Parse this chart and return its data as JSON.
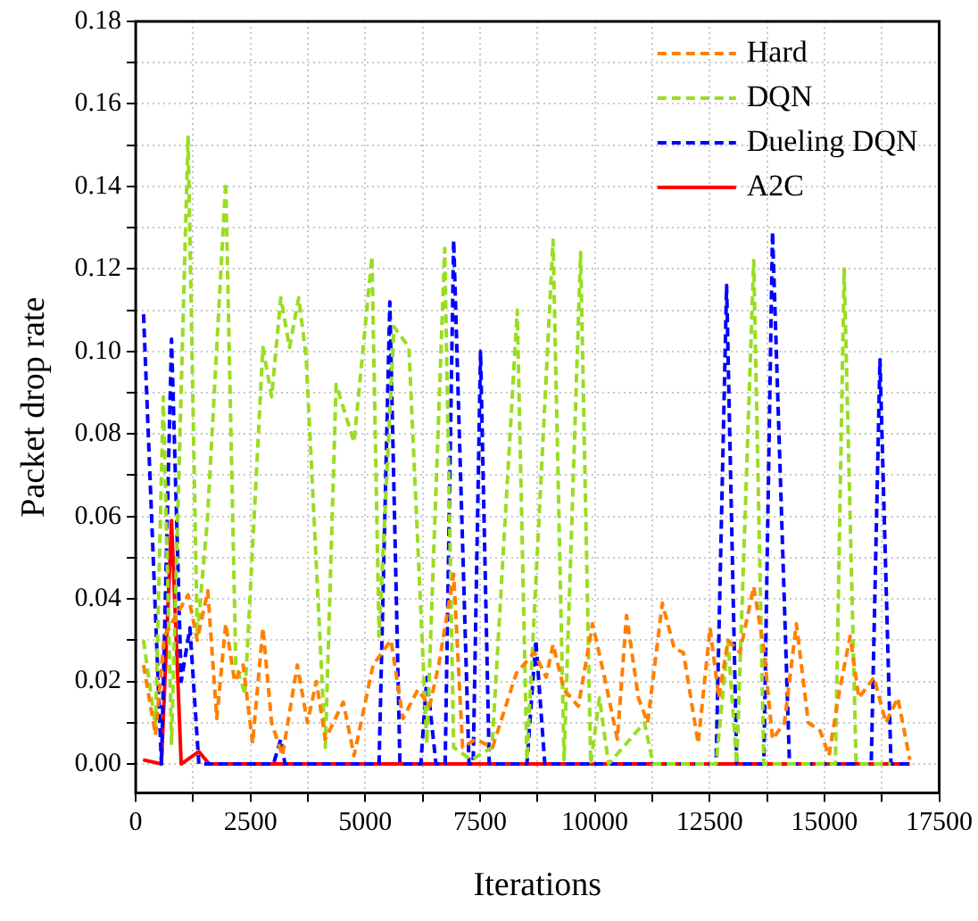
{
  "chart_data": {
    "type": "line",
    "xlabel": "Iterations",
    "ylabel": "Packet drop rate",
    "xlim": [
      0,
      17500
    ],
    "ylim": [
      -0.007,
      0.18
    ],
    "xticks": [
      0,
      {
        "value": 1250,
        "label": null
      },
      2500,
      {
        "value": 3750,
        "label": null
      },
      5000,
      {
        "value": 6250,
        "label": null
      },
      7500,
      {
        "value": 8750,
        "label": null
      },
      10000,
      {
        "value": 11250,
        "label": null
      },
      12500,
      {
        "value": 13750,
        "label": null
      },
      15000,
      {
        "value": 16250,
        "label": null
      },
      17500
    ],
    "yticks": [
      {
        "value": 0,
        "label": "0.00"
      },
      {
        "value": 0.01,
        "label": null
      },
      {
        "value": 0.02,
        "label": "0.02"
      },
      {
        "value": 0.03,
        "label": null
      },
      {
        "value": 0.04,
        "label": "0.04"
      },
      {
        "value": 0.05,
        "label": null
      },
      {
        "value": 0.06,
        "label": "0.06"
      },
      {
        "value": 0.07,
        "label": null
      },
      {
        "value": 0.08,
        "label": "0.08"
      },
      {
        "value": 0.09,
        "label": null
      },
      {
        "value": 0.1,
        "label": "0.10"
      },
      {
        "value": 0.11,
        "label": null
      },
      {
        "value": 0.12,
        "label": "0.12"
      },
      {
        "value": 0.13,
        "label": null
      },
      {
        "value": 0.14,
        "label": "0.14"
      },
      {
        "value": 0.15,
        "label": null
      },
      {
        "value": 0.16,
        "label": "0.16"
      },
      {
        "value": 0.17,
        "label": null
      },
      {
        "value": 0.18,
        "label": "0.18"
      }
    ],
    "grid": true,
    "legend": "top right",
    "marker": "none",
    "series": [
      {
        "name": "Hard",
        "color": "#ff8000",
        "line_style": "dashed",
        "x": [
          170,
          430,
          620,
          1140,
          1340,
          1570,
          1765,
          1960,
          2155,
          2340,
          2545,
          2770,
          2960,
          3195,
          3520,
          3740,
          3935,
          4130,
          4520,
          4755,
          5170,
          5560,
          5820,
          6145,
          6400,
          6600,
          6925,
          7120,
          7400,
          7770,
          8290,
          8680,
          8940,
          9090,
          9330,
          9640,
          9950,
          10230,
          10490,
          10690,
          10950,
          11150,
          11470,
          11730,
          11930,
          12250,
          12510,
          12700,
          12900,
          13160,
          13460,
          13680,
          13870,
          14130,
          14390,
          14650,
          14910,
          15100,
          15300,
          15560,
          15750,
          16080,
          16340,
          16600,
          16860
        ],
        "values": [
          0.024,
          0.007,
          0.031,
          0.041,
          0.03,
          0.042,
          0.011,
          0.034,
          0.02,
          0.024,
          0.005,
          0.033,
          0.01,
          0.002,
          0.024,
          0.01,
          0.02,
          0.006,
          0.015,
          0.002,
          0.024,
          0.03,
          0.011,
          0.018,
          0.014,
          0.024,
          0.046,
          0.004,
          0.006,
          0.004,
          0.022,
          0.027,
          0.021,
          0.029,
          0.018,
          0.014,
          0.034,
          0.02,
          0.006,
          0.036,
          0.016,
          0.01,
          0.039,
          0.028,
          0.027,
          0.005,
          0.033,
          0.016,
          0.03,
          0.027,
          0.043,
          0.028,
          0.006,
          0.01,
          0.034,
          0.01,
          0.008,
          0.002,
          0.016,
          0.031,
          0.016,
          0.021,
          0.01,
          0.016,
          0.001
        ]
      },
      {
        "name": "DQN",
        "color": "#99dd22",
        "line_style": "dashed",
        "x": [
          170,
          430,
          600,
          780,
          1140,
          1340,
          1560,
          1960,
          2180,
          2380,
          2770,
          2960,
          3160,
          3350,
          3550,
          3710,
          4130,
          4365,
          4755,
          5145,
          5300,
          5625,
          5950,
          6340,
          6730,
          6925,
          7315,
          7760,
          8310,
          8520,
          9090,
          9330,
          9690,
          9910,
          10100,
          10300,
          11080,
          11270,
          12640,
          12900,
          13090,
          13460,
          13680,
          15240,
          15430,
          15690,
          16450
        ],
        "values": [
          0.03,
          0.009,
          0.089,
          0.005,
          0.152,
          0.031,
          0.059,
          0.141,
          0.024,
          0.017,
          0.101,
          0.089,
          0.113,
          0.101,
          0.113,
          0.099,
          0.004,
          0.092,
          0.078,
          0.123,
          0.031,
          0.106,
          0.101,
          0.005,
          0.125,
          0.004,
          0.001,
          0.004,
          0.11,
          0.001,
          0.127,
          0.001,
          0.124,
          0,
          0.016,
          0,
          0.01,
          0,
          0,
          0.03,
          0,
          0.122,
          0,
          0,
          0.12,
          0,
          0
        ]
      },
      {
        "name": "Dueling DQN",
        "color": "#0000ff",
        "line_style": "dashed",
        "x": [
          170,
          560,
          780,
          990,
          1180,
          1375,
          3000,
          3160,
          3250,
          5300,
          5535,
          5755,
          6210,
          6340,
          6540,
          6740,
          6925,
          7260,
          7350,
          7510,
          7700,
          8520,
          8715,
          8910,
          12640,
          12870,
          13090,
          13680,
          13870,
          14240,
          16020,
          16210,
          16450,
          16900
        ],
        "values": [
          0.109,
          0,
          0.103,
          0.02,
          0.033,
          0,
          0,
          0.006,
          0,
          0,
          0.112,
          0,
          0,
          0.021,
          0,
          0,
          0.127,
          0,
          0,
          0.1,
          0,
          0,
          0.03,
          0,
          0,
          0.116,
          0,
          0,
          0.129,
          0,
          0,
          0.098,
          0,
          0
        ]
      },
      {
        "name": "A2C",
        "color": "#ff0000",
        "line_style": "solid",
        "x": [
          160,
          560,
          780,
          990,
          1375,
          1600,
          16860
        ],
        "values": [
          0.001,
          0,
          0.059,
          0,
          0.003,
          0,
          0
        ]
      }
    ]
  }
}
